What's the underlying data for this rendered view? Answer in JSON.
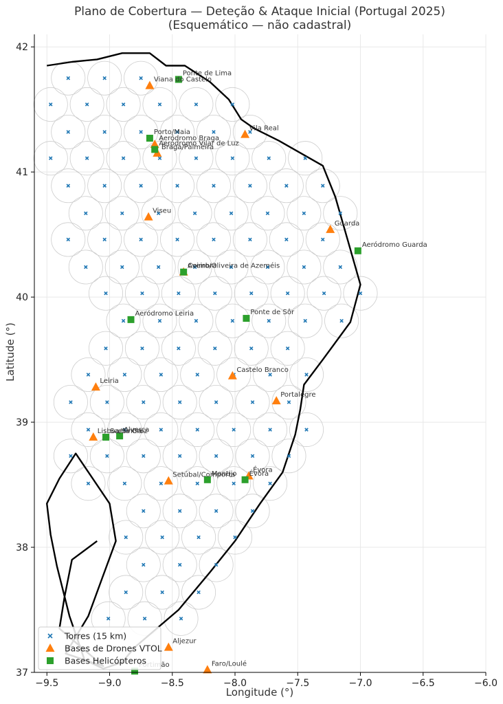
{
  "chart_data": {
    "type": "scatter",
    "title": "Plano de Cobertura — Deteção & Ataque Inicial (Portugal 2025)",
    "subtitle": "(Esquemático — não cadastral)",
    "xlabel": "Longitude (°)",
    "ylabel": "Latitude (°)",
    "xlim": [
      -9.6,
      -6.0
    ],
    "ylim": [
      37.0,
      42.1
    ],
    "xticks": [
      -9.5,
      -9.0,
      -8.5,
      -8.0,
      -7.5,
      -7.0,
      -6.5,
      -6.0
    ],
    "xtick_labels": [
      "−9.5",
      "−9.0",
      "−8.5",
      "−8.0",
      "−7.5",
      "−7.0",
      "−6.5",
      "−6.0"
    ],
    "yticks": [
      37,
      38,
      39,
      40,
      41,
      42
    ],
    "ytick_labels": [
      "37",
      "38",
      "39",
      "40",
      "41",
      "42"
    ],
    "grid": true,
    "legend_position": "bottom-left",
    "boundary": [
      [
        -9.5,
        41.85
      ],
      [
        -9.3,
        41.88
      ],
      [
        -9.1,
        41.9
      ],
      [
        -8.9,
        41.95
      ],
      [
        -8.68,
        41.95
      ],
      [
        -8.55,
        41.85
      ],
      [
        -8.4,
        41.85
      ],
      [
        -8.2,
        41.72
      ],
      [
        -8.05,
        41.58
      ],
      [
        -7.95,
        41.42
      ],
      [
        -7.85,
        41.35
      ],
      [
        -7.65,
        41.25
      ],
      [
        -7.3,
        41.05
      ],
      [
        -7.2,
        40.8
      ],
      [
        -7.1,
        40.45
      ],
      [
        -7.0,
        40.1
      ],
      [
        -7.08,
        39.8
      ],
      [
        -7.3,
        39.5
      ],
      [
        -7.45,
        39.3
      ],
      [
        -7.48,
        39.1
      ],
      [
        -7.52,
        38.9
      ],
      [
        -7.62,
        38.6
      ],
      [
        -7.8,
        38.35
      ],
      [
        -8.0,
        38.05
      ],
      [
        -8.2,
        37.8
      ],
      [
        -8.45,
        37.5
      ],
      [
        -8.8,
        37.2
      ],
      [
        -8.9,
        37.08
      ],
      [
        -9.05,
        37.03
      ],
      [
        -9.2,
        37.1
      ],
      [
        -9.32,
        37.45
      ],
      [
        -9.42,
        37.85
      ],
      [
        -9.47,
        38.1
      ],
      [
        -9.5,
        38.35
      ],
      [
        -9.4,
        38.55
      ],
      [
        -9.27,
        38.75
      ],
      [
        -9.0,
        38.35
      ],
      [
        -8.95,
        38.05
      ],
      [
        -9.06,
        37.75
      ],
      [
        -9.17,
        37.45
      ],
      [
        -9.35,
        37.15
      ],
      [
        -9.05,
        37.05
      ],
      [
        -9.4,
        37.35
      ],
      [
        -9.36,
        37.6
      ],
      [
        -9.3,
        37.9
      ],
      [
        -9.1,
        38.05
      ]
    ],
    "towers_radius_km": 15,
    "towers": [
      [
        -9.33,
        41.75
      ],
      [
        -9.04,
        41.75
      ],
      [
        -8.75,
        41.75
      ],
      [
        -9.47,
        41.54
      ],
      [
        -9.18,
        41.54
      ],
      [
        -8.89,
        41.54
      ],
      [
        -8.6,
        41.54
      ],
      [
        -8.31,
        41.54
      ],
      [
        -8.02,
        41.54
      ],
      [
        -9.33,
        41.32
      ],
      [
        -9.04,
        41.32
      ],
      [
        -8.75,
        41.32
      ],
      [
        -8.46,
        41.32
      ],
      [
        -8.17,
        41.32
      ],
      [
        -7.88,
        41.32
      ],
      [
        -9.47,
        41.11
      ],
      [
        -9.18,
        41.11
      ],
      [
        -8.89,
        41.11
      ],
      [
        -8.6,
        41.11
      ],
      [
        -8.31,
        41.11
      ],
      [
        -8.02,
        41.11
      ],
      [
        -7.73,
        41.11
      ],
      [
        -7.44,
        41.11
      ],
      [
        -9.33,
        40.89
      ],
      [
        -9.04,
        40.89
      ],
      [
        -8.75,
        40.89
      ],
      [
        -8.46,
        40.89
      ],
      [
        -8.17,
        40.89
      ],
      [
        -7.88,
        40.89
      ],
      [
        -7.59,
        40.89
      ],
      [
        -7.3,
        40.89
      ],
      [
        -9.19,
        40.67
      ],
      [
        -8.9,
        40.67
      ],
      [
        -8.61,
        40.67
      ],
      [
        -8.32,
        40.67
      ],
      [
        -8.03,
        40.67
      ],
      [
        -7.74,
        40.67
      ],
      [
        -7.45,
        40.67
      ],
      [
        -7.16,
        40.67
      ],
      [
        -9.33,
        40.46
      ],
      [
        -9.04,
        40.46
      ],
      [
        -8.75,
        40.46
      ],
      [
        -8.46,
        40.46
      ],
      [
        -8.17,
        40.46
      ],
      [
        -7.88,
        40.46
      ],
      [
        -7.59,
        40.46
      ],
      [
        -7.3,
        40.46
      ],
      [
        -9.19,
        40.24
      ],
      [
        -8.9,
        40.24
      ],
      [
        -8.61,
        40.24
      ],
      [
        -8.32,
        40.24
      ],
      [
        -8.03,
        40.24
      ],
      [
        -7.74,
        40.24
      ],
      [
        -7.45,
        40.24
      ],
      [
        -7.16,
        40.24
      ],
      [
        -9.03,
        40.03
      ],
      [
        -8.74,
        40.03
      ],
      [
        -8.45,
        40.03
      ],
      [
        -8.16,
        40.03
      ],
      [
        -7.87,
        40.03
      ],
      [
        -7.58,
        40.03
      ],
      [
        -7.29,
        40.03
      ],
      [
        -7.0,
        40.03
      ],
      [
        -8.89,
        39.81
      ],
      [
        -8.6,
        39.81
      ],
      [
        -8.31,
        39.81
      ],
      [
        -8.02,
        39.81
      ],
      [
        -7.73,
        39.81
      ],
      [
        -7.44,
        39.81
      ],
      [
        -7.15,
        39.81
      ],
      [
        -9.03,
        39.59
      ],
      [
        -8.74,
        39.59
      ],
      [
        -8.45,
        39.59
      ],
      [
        -8.16,
        39.59
      ],
      [
        -7.87,
        39.59
      ],
      [
        -7.58,
        39.59
      ],
      [
        -9.17,
        39.38
      ],
      [
        -8.88,
        39.38
      ],
      [
        -8.59,
        39.38
      ],
      [
        -8.3,
        39.38
      ],
      [
        -8.01,
        39.38
      ],
      [
        -7.72,
        39.38
      ],
      [
        -7.43,
        39.38
      ],
      [
        -9.31,
        39.16
      ],
      [
        -9.02,
        39.16
      ],
      [
        -8.73,
        39.16
      ],
      [
        -8.44,
        39.16
      ],
      [
        -8.15,
        39.16
      ],
      [
        -7.86,
        39.16
      ],
      [
        -7.57,
        39.16
      ],
      [
        -9.17,
        38.94
      ],
      [
        -8.88,
        38.94
      ],
      [
        -8.59,
        38.94
      ],
      [
        -8.3,
        38.94
      ],
      [
        -8.01,
        38.94
      ],
      [
        -7.72,
        38.94
      ],
      [
        -7.43,
        38.94
      ],
      [
        -9.31,
        38.73
      ],
      [
        -9.02,
        38.73
      ],
      [
        -8.73,
        38.73
      ],
      [
        -8.44,
        38.73
      ],
      [
        -8.15,
        38.73
      ],
      [
        -7.86,
        38.73
      ],
      [
        -7.57,
        38.73
      ],
      [
        -9.17,
        38.51
      ],
      [
        -8.88,
        38.51
      ],
      [
        -8.59,
        38.51
      ],
      [
        -8.3,
        38.51
      ],
      [
        -8.01,
        38.51
      ],
      [
        -7.72,
        38.51
      ],
      [
        -8.73,
        38.29
      ],
      [
        -8.44,
        38.29
      ],
      [
        -8.15,
        38.29
      ],
      [
        -7.86,
        38.29
      ],
      [
        -8.87,
        38.08
      ],
      [
        -8.58,
        38.08
      ],
      [
        -8.29,
        38.08
      ],
      [
        -8.0,
        38.08
      ],
      [
        -8.73,
        37.86
      ],
      [
        -8.44,
        37.86
      ],
      [
        -8.15,
        37.86
      ],
      [
        -8.87,
        37.64
      ],
      [
        -8.58,
        37.64
      ],
      [
        -8.29,
        37.64
      ],
      [
        -9.01,
        37.43
      ],
      [
        -8.72,
        37.43
      ],
      [
        -8.43,
        37.43
      ]
    ],
    "drone_bases": [
      {
        "name": "Viana do Castelo",
        "lon": -8.68,
        "lat": 41.69
      },
      {
        "name": "Vila Real",
        "lon": -7.92,
        "lat": 41.3
      },
      {
        "name": "Aeródromo Braga",
        "lon": -8.64,
        "lat": 41.22
      },
      {
        "name": "Braga/Palmeira",
        "lon": -8.62,
        "lat": 41.15
      },
      {
        "name": "Viseu",
        "lon": -8.69,
        "lat": 40.64
      },
      {
        "name": "Guarda",
        "lon": -7.24,
        "lat": 40.54
      },
      {
        "name": "Coimbra",
        "lon": -8.41,
        "lat": 40.2
      },
      {
        "name": "Leiria",
        "lon": -9.11,
        "lat": 39.28
      },
      {
        "name": "Castelo Branco",
        "lon": -8.02,
        "lat": 39.37
      },
      {
        "name": "Portalegre",
        "lon": -7.67,
        "lat": 39.17
      },
      {
        "name": "Lisboa/Sintra",
        "lon": -9.13,
        "lat": 38.88
      },
      {
        "name": "Setúbal/Comporta",
        "lon": -8.53,
        "lat": 38.53
      },
      {
        "name": "Évora",
        "lon": -7.89,
        "lat": 38.57
      },
      {
        "name": "Aljezur",
        "lon": -8.53,
        "lat": 37.2
      },
      {
        "name": "Faro/Loulé",
        "lon": -8.22,
        "lat": 37.02
      }
    ],
    "heli_bases": [
      {
        "name": "Ponte de Lima",
        "lon": -8.45,
        "lat": 41.74
      },
      {
        "name": "Porto/Maia",
        "lon": -8.68,
        "lat": 41.27
      },
      {
        "name": "Aeródromo Vilar de Luz",
        "lon": -8.64,
        "lat": 41.18
      },
      {
        "name": "Aeródromo Guarda",
        "lon": -7.02,
        "lat": 40.37
      },
      {
        "name": "Aveiro/Oliveira de Azeméis",
        "lon": -8.41,
        "lat": 40.2
      },
      {
        "name": "Aeródromo Leiria",
        "lon": -8.83,
        "lat": 39.82
      },
      {
        "name": "Ponte de Sôr",
        "lon": -7.91,
        "lat": 39.83
      },
      {
        "name": "Santa Cruz",
        "lon": -9.03,
        "lat": 38.88
      },
      {
        "name": "Alverca",
        "lon": -8.92,
        "lat": 38.89
      },
      {
        "name": "Montijo",
        "lon": -8.22,
        "lat": 38.54
      },
      {
        "name": "Évora",
        "lon": -7.92,
        "lat": 38.54
      },
      {
        "name": "Portimão",
        "lon": -8.8,
        "lat": 37.01
      }
    ],
    "legend": [
      {
        "label": "Torres (15 km)",
        "marker": "x",
        "color": "#1f77b4"
      },
      {
        "label": "Bases de Drones VTOL",
        "marker": "triangle",
        "color": "#ff7f0e"
      },
      {
        "label": "Bases Helicópteros",
        "marker": "square",
        "color": "#2ca02c"
      }
    ],
    "colors": {
      "towers": "#1f77b4",
      "drones": "#ff7f0e",
      "heli": "#2ca02c",
      "boundary": "#000000",
      "circles": "#cccccc"
    }
  }
}
